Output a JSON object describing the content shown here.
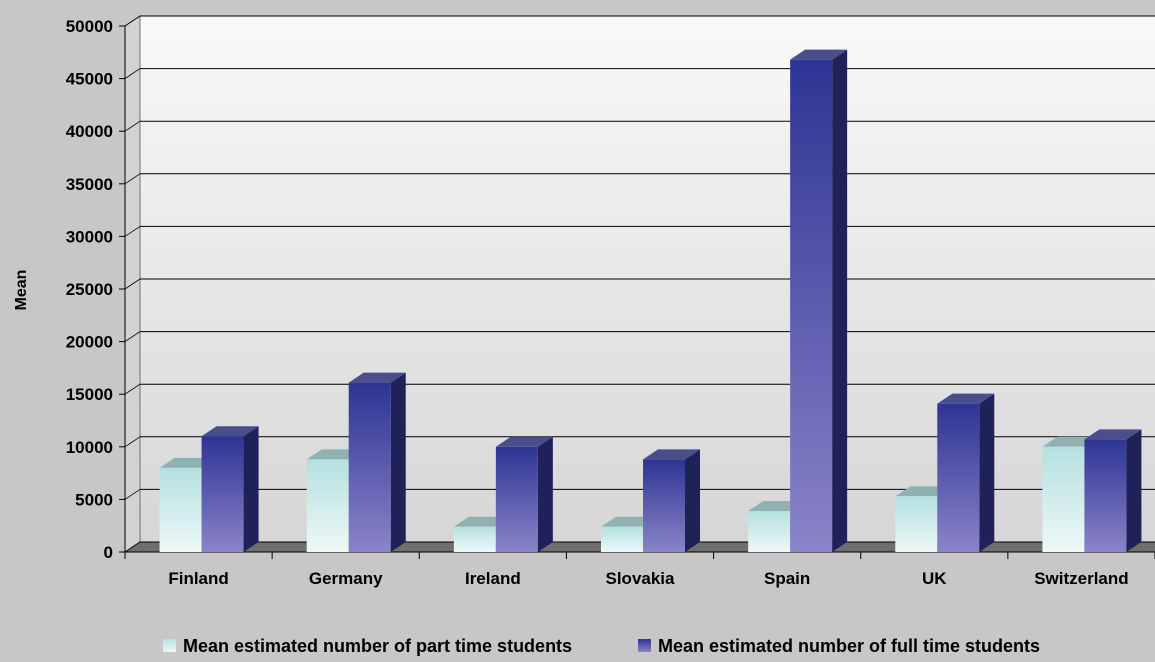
{
  "chart_data": {
    "type": "bar",
    "title": "",
    "xlabel": "",
    "ylabel": "Mean",
    "ylim": [
      0,
      50000
    ],
    "yticks": [
      "0",
      "5000",
      "10000",
      "15000",
      "20000",
      "25000",
      "30000",
      "35000",
      "40000",
      "45000",
      "50000"
    ],
    "categories": [
      "Finland",
      "Germany",
      "Ireland",
      "Slovakia",
      "Spain",
      "UK",
      "Switzerland"
    ],
    "series": [
      {
        "name": "Mean estimated number of part time students",
        "values": [
          8000,
          8800,
          2400,
          2400,
          3900,
          5300,
          10000
        ]
      },
      {
        "name": "Mean estimated number of full time students",
        "values": [
          11000,
          16100,
          10000,
          8800,
          46800,
          14100,
          10700
        ]
      }
    ],
    "grid": true,
    "legend_position": "bottom",
    "style": "3d-clustered-column",
    "colors": {
      "part_time": "#bfe3e3",
      "full_time": "#3a3f9a",
      "background": "#c8c6c6",
      "plot_wall": "#e7e7e7",
      "floor": "#6f6f6f"
    }
  }
}
